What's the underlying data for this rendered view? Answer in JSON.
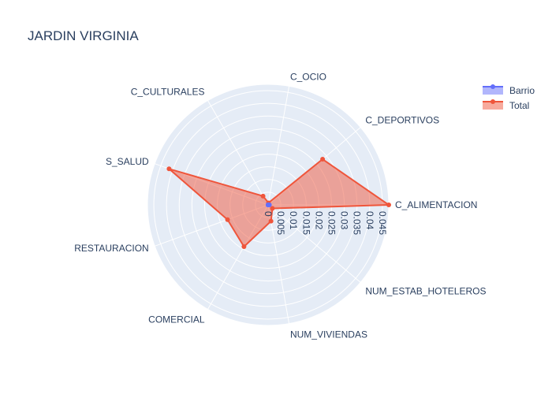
{
  "chart_data": {
    "type": "radar",
    "title": "JARDIN VIRGINIA",
    "axes": [
      "C_ALIMENTACION",
      "C_DEPORTIVOS",
      "C_OCIO",
      "C_CULTURALES",
      "S_SALUD",
      "RESTAURACION",
      "COMERCIAL",
      "NUM_VIVIENDAS",
      "NUM_ESTAB_HOTELEROS"
    ],
    "radial_range": [
      0,
      0.0475
    ],
    "radial_ticks": [
      0,
      0.005,
      0.01,
      0.015,
      0.02,
      0.025,
      0.03,
      0.035,
      0.04,
      0.045
    ],
    "radial_tick_labels": [
      "0",
      "0.005",
      "0.01",
      "0.015",
      "0.02",
      "0.025",
      "0.03",
      "0.035",
      "0.04",
      "0.045"
    ],
    "legend_position": "top-right",
    "series": [
      {
        "name": "Barrio",
        "color": "#636efa",
        "values": [
          0.0005,
          0,
          0,
          0,
          0,
          0,
          0,
          0,
          0
        ]
      },
      {
        "name": "Total",
        "color": "#ef553b",
        "values": [
          0.0475,
          0.028,
          0.0008,
          0.004,
          0.0415,
          0.017,
          0.019,
          0.0065,
          0.0022
        ]
      }
    ]
  }
}
